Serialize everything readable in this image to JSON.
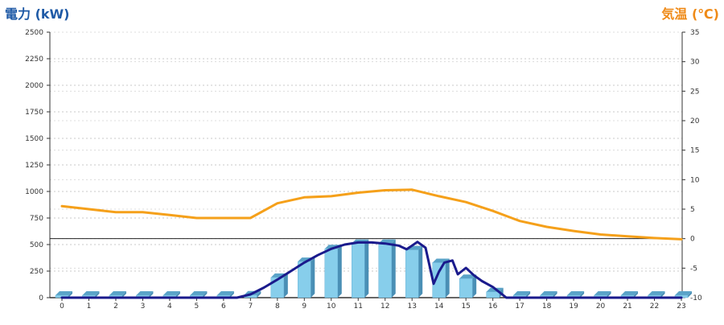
{
  "chart_data": {
    "type": "bar",
    "y_left_title": "電力 (kW)",
    "y_right_title": "気温 (℃)",
    "x_ticks": [
      "0",
      "1",
      "2",
      "3",
      "4",
      "5",
      "6",
      "7",
      "8",
      "9",
      "10",
      "11",
      "12",
      "13",
      "14",
      "15",
      "16",
      "17",
      "18",
      "19",
      "20",
      "21",
      "22",
      "23"
    ],
    "y_left_ticks": [
      "0",
      "250",
      "500",
      "750",
      "1000",
      "1250",
      "1500",
      "1750",
      "2000",
      "2250",
      "2500"
    ],
    "y_right_ticks": [
      "-10",
      "-5",
      "0",
      "5",
      "10",
      "15",
      "20",
      "25",
      "30",
      "35"
    ],
    "y_left_range": [
      0,
      2500
    ],
    "y_right_range": [
      -10,
      35
    ],
    "grid": true,
    "series": [
      {
        "type": "bar",
        "axis": "left",
        "color": "#87ceeb",
        "values": [
          0,
          0,
          0,
          0,
          0,
          0,
          0,
          25,
          190,
          340,
          460,
          510,
          510,
          450,
          330,
          180,
          55,
          0,
          0,
          0,
          0,
          0,
          0,
          0
        ]
      },
      {
        "type": "line",
        "axis": "left",
        "color": "#1a1a8c",
        "x": [
          0,
          6.5,
          7,
          7.5,
          8,
          8.5,
          9,
          9.5,
          10,
          10.5,
          11,
          11.5,
          12,
          12.5,
          12.8,
          13,
          13.2,
          13.5,
          13.8,
          14,
          14.2,
          14.5,
          14.7,
          15,
          15.3,
          15.6,
          16,
          16.5,
          23
        ],
        "values": [
          0,
          0,
          30,
          95,
          170,
          250,
          330,
          400,
          460,
          500,
          520,
          520,
          510,
          490,
          455,
          490,
          525,
          470,
          130,
          245,
          330,
          350,
          220,
          280,
          210,
          155,
          100,
          0,
          0
        ]
      },
      {
        "type": "line",
        "axis": "right",
        "color": "#f5a01a",
        "x": [
          0,
          1,
          2,
          3,
          4,
          5,
          6,
          7,
          8,
          9,
          10,
          11,
          12,
          13,
          14,
          15,
          16,
          17,
          18,
          19,
          20,
          21,
          22,
          23
        ],
        "values": [
          5.5,
          5,
          4.5,
          4.5,
          4,
          3.5,
          3.5,
          3.5,
          6,
          7,
          7.2,
          7.8,
          8.2,
          8.3,
          7.2,
          6.2,
          4.7,
          3,
          2,
          1.3,
          0.7,
          0.4,
          0.1,
          -0.1
        ]
      }
    ],
    "reference_line_right": 0
  }
}
